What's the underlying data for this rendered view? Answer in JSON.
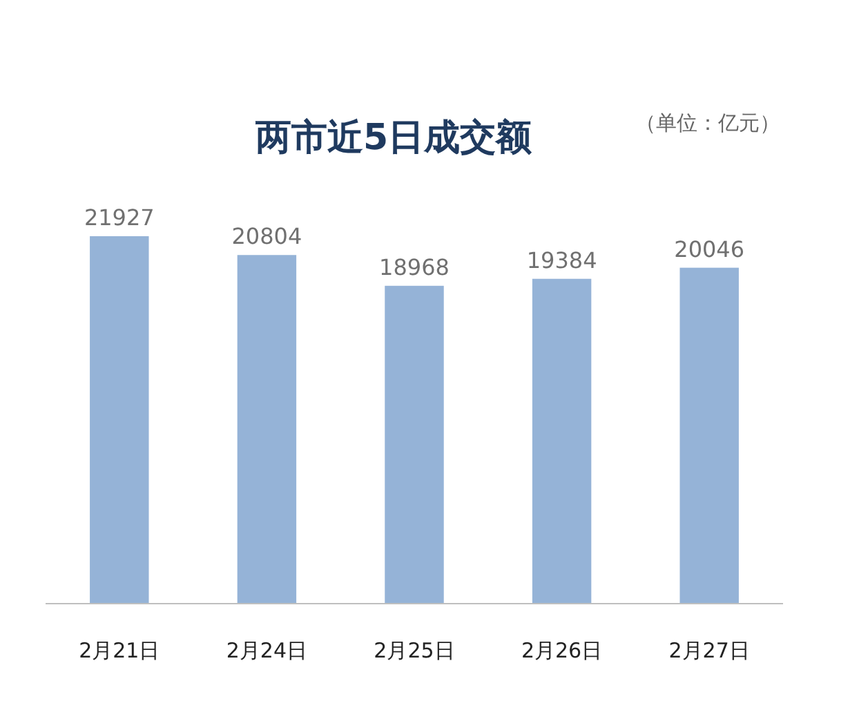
{
  "chart_data": {
    "type": "bar",
    "title": "两市近5日成交额",
    "annotations": [
      "（单位：亿元）"
    ],
    "categories": [
      "2月21日",
      "2月24日",
      "2月25日",
      "2月26日",
      "2月27日"
    ],
    "values": [
      21927,
      20804,
      18968,
      19384,
      20046
    ],
    "color": "#95b3d7",
    "data_labels": true
  }
}
